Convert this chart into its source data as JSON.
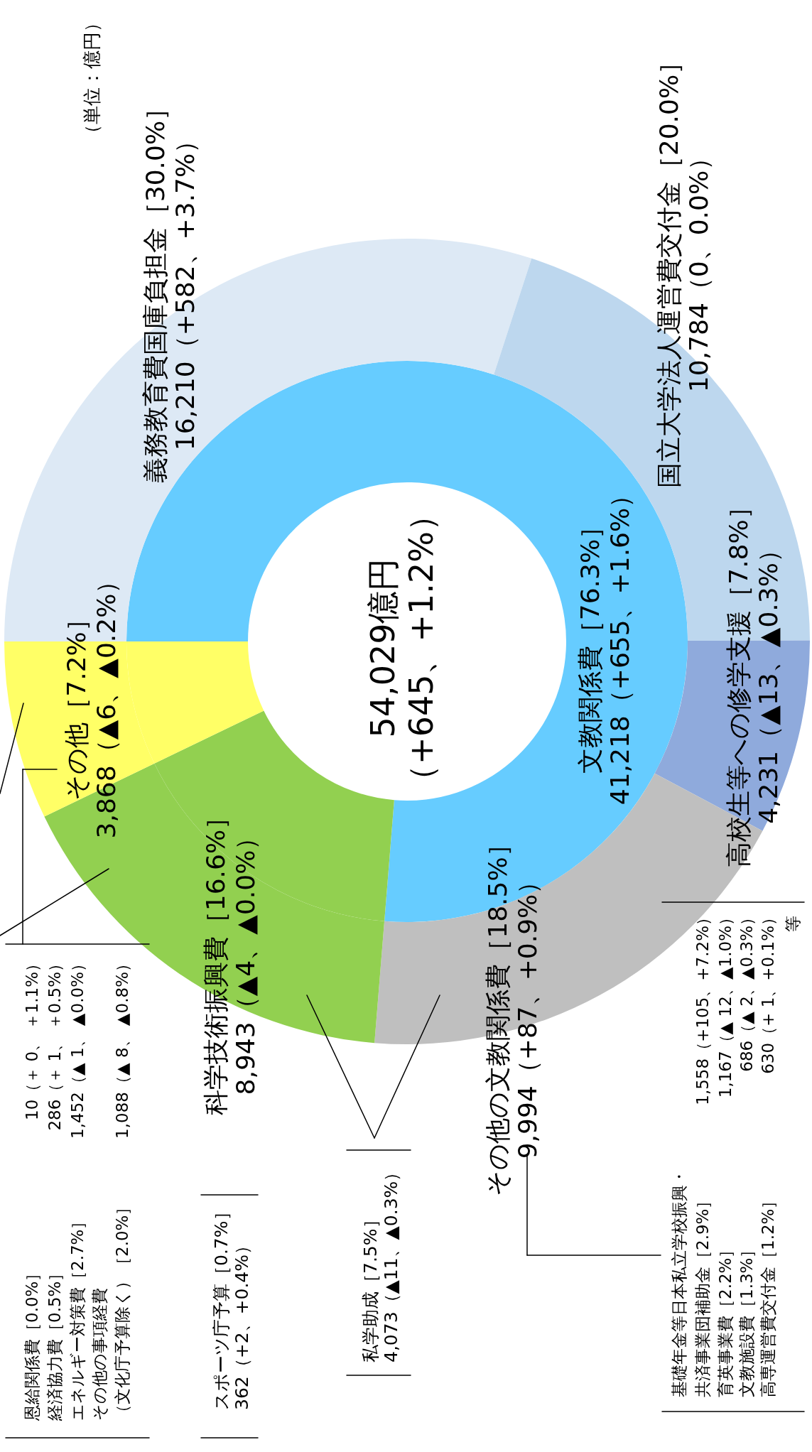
{
  "chart_data": {
    "type": "donut",
    "series": [
      {
        "values": [
          41218,
          8943,
          3868
        ],
        "colors": [
          "#66ccff",
          "#92d050",
          "#ffff66"
        ],
        "value_labels": [
          "41,218（+655、+1.6%）",
          "8,943（▲4、▲0.0%）",
          "3,868（▲6、▲0.2%）"
        ]
      },
      {
        "values": [
          16210,
          10784,
          4231,
          9994,
          8943,
          3868
        ],
        "colors": [
          "#dde9f5",
          "#bdd7ee",
          "#8faadc",
          "#bfbfbf",
          "#92d050",
          "#ffff66"
        ],
        "value_labels": [
          "16,210（+582、+3.7%）",
          "10,784（0、0.0%）",
          "4,231（▲13、▲0.3%）",
          "9,994（+87、+0.9%）",
          null,
          null
        ]
      }
    ],
    "annotations": [
      "54,029億円",
      "（+645、+1.2%）",
      "（単位：億円）",
      "恩給関係費［0.0%］",
      "経済協力費［0.5%］",
      "エネルギー対策費［2.7%］",
      "その他の事項経費（文化庁予算除く）［2.0%］",
      "10（＋ 0、 ＋1.1%）",
      "286（＋ 1、 ＋0.5%）",
      "1,452（▲ 1、 ▲0.0%）",
      "1,088（▲ 8、 ▲0.8%）",
      "スポーツ庁予算［0.7%］",
      "362（+2、+0.4%）",
      "私学助成［7.5%］",
      "4,073（▲11、▲0.3%）",
      "基礎年金等日本私立学校振興・共済事業団補助金［2.9%］",
      "育英事業費［2.2%］",
      "文教施設費［1.3%］",
      "高専運営費交付金［1.2%］",
      "1,558（+105、+7.2%）",
      "1,167（▲ 12、▲1.0%）",
      "686（▲ 2、▲0.3%）",
      "630（+ 1、+0.1%）",
      "等",
      "文教関係費［76.3%］",
      "科学技術振興費［16.6%］",
      "その他［7.2%］",
      "義務教育費国庫負担金［30.0%］",
      "国立大学法人運営費交付金［20.0%］",
      "高校生等への修学支援［7.8%］",
      "その他の文教関係費［18.5%］"
    ]
  }
}
